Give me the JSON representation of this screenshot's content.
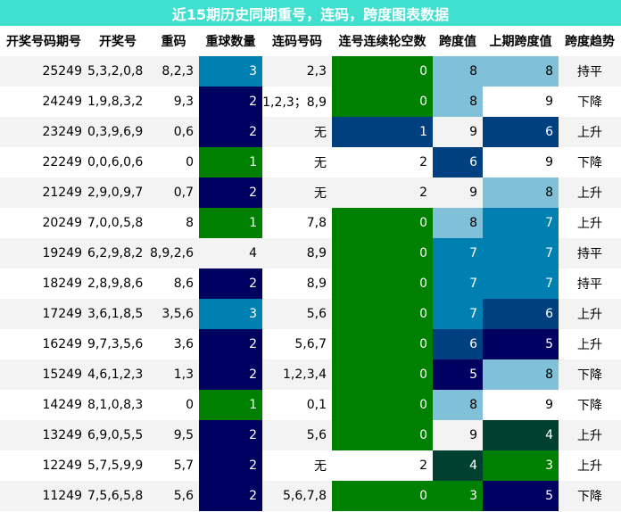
{
  "title": "近15期历史同期重号，连码，跨度图表数据",
  "headers": [
    "开奖号码期号",
    "开奖号",
    "重码",
    "重球数量",
    "连码号码",
    "连号连续轮空数",
    "跨度值",
    "上期跨度值",
    "跨度趋势"
  ],
  "rows": [
    [
      "25249",
      "5,3,2,0,8",
      "8,2,3",
      "3",
      "2,3",
      "0",
      "8",
      "8",
      "持平"
    ],
    [
      "24249",
      "1,9,8,3,2",
      "9,3",
      "2",
      "1,2,3；8,9",
      "0",
      "8",
      "9",
      "下降"
    ],
    [
      "23249",
      "0,3,9,6,9",
      "0,6",
      "2",
      "无",
      "1",
      "9",
      "6",
      "上升"
    ],
    [
      "22249",
      "0,0,6,0,6",
      "0",
      "1",
      "无",
      "2",
      "6",
      "9",
      "下降"
    ],
    [
      "21249",
      "2,9,0,9,7",
      "0,7",
      "2",
      "无",
      "2",
      "9",
      "8",
      "上升"
    ],
    [
      "20249",
      "7,0,0,5,8",
      "8",
      "1",
      "7,8",
      "0",
      "8",
      "7",
      "上升"
    ],
    [
      "19249",
      "6,2,9,8,2",
      "8,9,2,6",
      "4",
      "8,9",
      "0",
      "7",
      "7",
      "持平"
    ],
    [
      "18249",
      "2,8,9,8,6",
      "8,6",
      "2",
      "8,9",
      "0",
      "7",
      "7",
      "持平"
    ],
    [
      "17249",
      "3,6,1,8,5",
      "3,5,6",
      "3",
      "5,6",
      "0",
      "7",
      "6",
      "上升"
    ],
    [
      "16249",
      "9,7,3,5,6",
      "3,6",
      "2",
      "5,6,7",
      "0",
      "6",
      "5",
      "上升"
    ],
    [
      "15249",
      "4,6,1,2,3",
      "1,3",
      "2",
      "1,2,3,4",
      "0",
      "5",
      "8",
      "下降"
    ],
    [
      "14249",
      "8,1,0,8,3",
      "0",
      "1",
      "0,1",
      "0",
      "8",
      "9",
      "下降"
    ],
    [
      "13249",
      "6,9,0,5,5",
      "9,5",
      "2",
      "5,6",
      "0",
      "9",
      "4",
      "上升"
    ],
    [
      "12249",
      "5,7,5,9,9",
      "5,7",
      "2",
      "无",
      "2",
      "4",
      "3",
      "上升"
    ],
    [
      "11249",
      "7,5,6,5,8",
      "5,6",
      "2",
      "5,6,7,8",
      "0",
      "3",
      "5",
      "下降"
    ]
  ],
  "cell_colors": {
    "3": [
      {
        "bg": "#0080b0",
        "fg": "#ffffff"
      },
      {
        "bg": "#000060",
        "fg": "#ffffff"
      },
      {
        "bg": "#000060",
        "fg": "#ffffff"
      },
      {
        "bg": "#008000",
        "fg": "#ffffff"
      },
      {
        "bg": "#000060",
        "fg": "#ffffff"
      },
      {
        "bg": "#008000",
        "fg": "#ffffff"
      },
      null,
      {
        "bg": "#000060",
        "fg": "#ffffff"
      },
      {
        "bg": "#0080b0",
        "fg": "#ffffff"
      },
      {
        "bg": "#000060",
        "fg": "#ffffff"
      },
      {
        "bg": "#000060",
        "fg": "#ffffff"
      },
      {
        "bg": "#008000",
        "fg": "#ffffff"
      },
      {
        "bg": "#000060",
        "fg": "#ffffff"
      },
      {
        "bg": "#000060",
        "fg": "#ffffff"
      },
      {
        "bg": "#000060",
        "fg": "#ffffff"
      }
    ],
    "5": [
      {
        "bg": "#008000",
        "fg": "#ffffff"
      },
      {
        "bg": "#008000",
        "fg": "#ffffff"
      },
      {
        "bg": "#004080",
        "fg": "#ffffff"
      },
      null,
      null,
      {
        "bg": "#008000",
        "fg": "#ffffff"
      },
      {
        "bg": "#008000",
        "fg": "#ffffff"
      },
      {
        "bg": "#008000",
        "fg": "#ffffff"
      },
      {
        "bg": "#008000",
        "fg": "#ffffff"
      },
      {
        "bg": "#008000",
        "fg": "#ffffff"
      },
      {
        "bg": "#008000",
        "fg": "#ffffff"
      },
      {
        "bg": "#008000",
        "fg": "#ffffff"
      },
      {
        "bg": "#008000",
        "fg": "#ffffff"
      },
      null,
      {
        "bg": "#008000",
        "fg": "#ffffff"
      }
    ],
    "6": [
      {
        "bg": "#80c0d8",
        "fg": "#000000"
      },
      {
        "bg": "#80c0d8",
        "fg": "#000000"
      },
      null,
      {
        "bg": "#004080",
        "fg": "#ffffff"
      },
      null,
      {
        "bg": "#80c0d8",
        "fg": "#000000"
      },
      {
        "bg": "#0080b0",
        "fg": "#ffffff"
      },
      {
        "bg": "#0080b0",
        "fg": "#ffffff"
      },
      {
        "bg": "#0080b0",
        "fg": "#ffffff"
      },
      {
        "bg": "#004080",
        "fg": "#ffffff"
      },
      {
        "bg": "#000060",
        "fg": "#ffffff"
      },
      {
        "bg": "#80c0d8",
        "fg": "#000000"
      },
      null,
      {
        "bg": "#004030",
        "fg": "#ffffff"
      },
      {
        "bg": "#008000",
        "fg": "#ffffff"
      }
    ],
    "7": [
      {
        "bg": "#80c0d8",
        "fg": "#000000"
      },
      null,
      {
        "bg": "#004080",
        "fg": "#ffffff"
      },
      null,
      {
        "bg": "#80c0d8",
        "fg": "#000000"
      },
      {
        "bg": "#0080b0",
        "fg": "#ffffff"
      },
      {
        "bg": "#0080b0",
        "fg": "#ffffff"
      },
      {
        "bg": "#0080b0",
        "fg": "#ffffff"
      },
      {
        "bg": "#004080",
        "fg": "#ffffff"
      },
      {
        "bg": "#000060",
        "fg": "#ffffff"
      },
      {
        "bg": "#80c0d8",
        "fg": "#000000"
      },
      null,
      {
        "bg": "#004030",
        "fg": "#ffffff"
      },
      {
        "bg": "#008000",
        "fg": "#ffffff"
      },
      {
        "bg": "#000060",
        "fg": "#ffffff"
      }
    ]
  }
}
